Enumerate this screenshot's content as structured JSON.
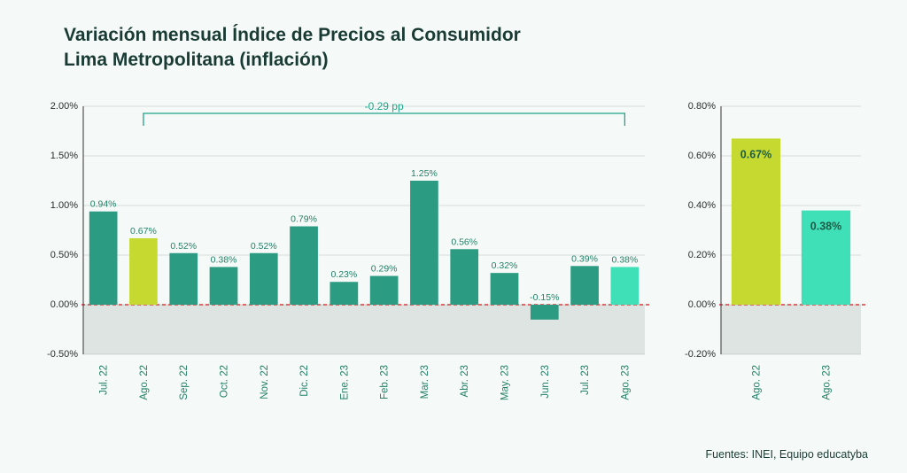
{
  "title": {
    "line1": "Variación mensual Índice de Precios al Consumidor",
    "line2": "Lima Metropolitana (inflación)"
  },
  "source": "Fuentes: INEI, Equipo educatyba",
  "colors": {
    "background": "#f5faf8",
    "title_text": "#1a3b34",
    "bar_default": "#2b9b82",
    "bar_highlight_a": "#c5d931",
    "bar_highlight_b": "#3fe0b8",
    "axis": "#333333",
    "grid": "rgba(120,130,125,0.25)",
    "zero_line": "#db3b3b",
    "value_label": "#238066",
    "category_label": "#238066",
    "bracket": "#1ea589",
    "neg_region": "rgba(180,186,184,0.35)",
    "side_value": "#1a5c47"
  },
  "font": {
    "title_size": 21,
    "tick_size": 11,
    "value_size": 10.5,
    "cat_size": 11.5
  },
  "main_chart": {
    "type": "bar",
    "ylim": [
      -0.5,
      2.0
    ],
    "ytick_step": 0.5,
    "ytick_format": "percent",
    "bar_width_ratio": 0.7,
    "categories": [
      "Jul. 22",
      "Ago. 22",
      "Sep. 22",
      "Oct. 22",
      "Nov. 22",
      "Dic. 22",
      "Ene. 23",
      "Feb. 23",
      "Mar. 23",
      "Abr. 23",
      "May. 23",
      "Jun. 23",
      "Jul. 23",
      "Ago. 23"
    ],
    "values": [
      0.94,
      0.67,
      0.52,
      0.38,
      0.52,
      0.79,
      0.23,
      0.29,
      1.25,
      0.56,
      0.32,
      -0.15,
      0.39,
      0.38
    ],
    "bar_colors": [
      "#2b9b82",
      "#c5d931",
      "#2b9b82",
      "#2b9b82",
      "#2b9b82",
      "#2b9b82",
      "#2b9b82",
      "#2b9b82",
      "#2b9b82",
      "#2b9b82",
      "#2b9b82",
      "#2b9b82",
      "#2b9b82",
      "#3fe0b8"
    ],
    "bracket": {
      "from_index": 1,
      "to_index": 13,
      "label": "-0.29 pp"
    }
  },
  "side_chart": {
    "type": "bar",
    "ylim": [
      -0.2,
      0.8
    ],
    "ytick_step": 0.2,
    "ytick_format": "percent",
    "bar_width_ratio": 0.7,
    "categories": [
      "Ago. 22",
      "Ago. 23"
    ],
    "values": [
      0.67,
      0.38
    ],
    "bar_colors": [
      "#c5d931",
      "#3fe0b8"
    ]
  }
}
